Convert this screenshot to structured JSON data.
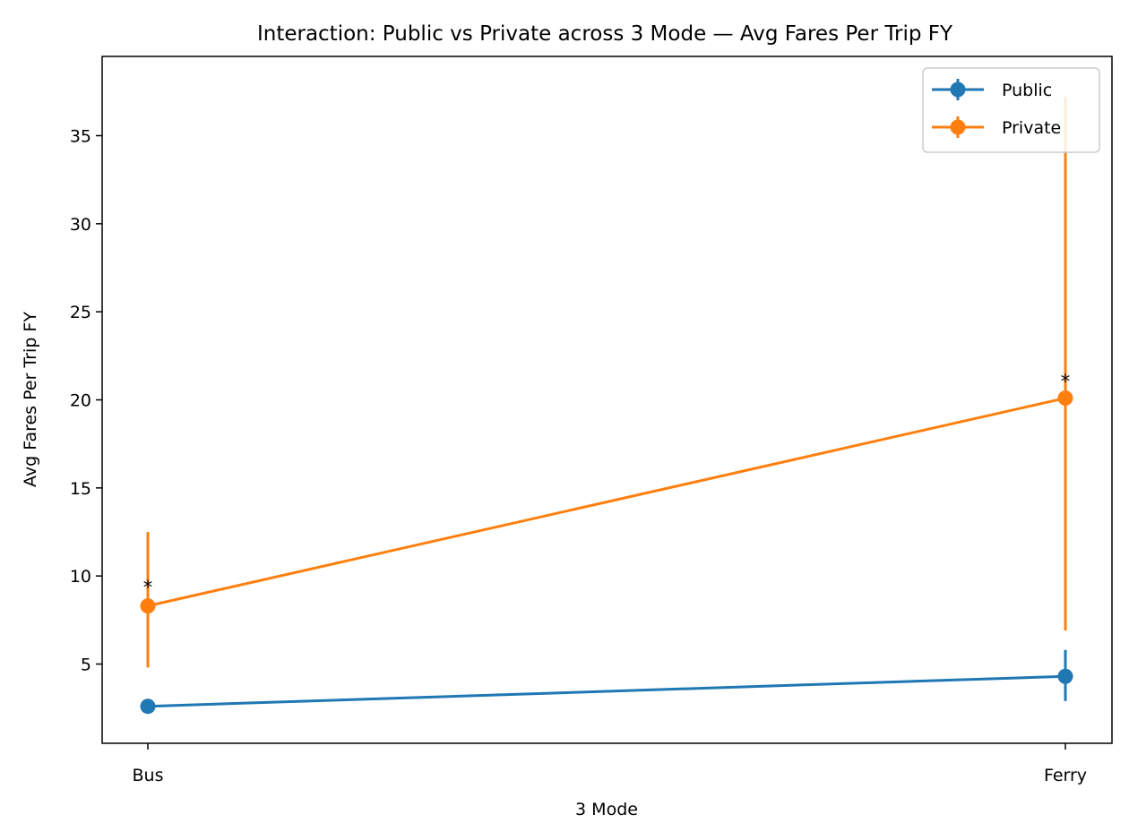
{
  "chart_data": {
    "type": "line",
    "title": "Interaction: Public vs Private across 3 Mode — Avg Fares Per Trip FY",
    "xlabel": "3 Mode",
    "ylabel": "Avg Fares Per Trip FY",
    "categories": [
      "Bus",
      "Ferry"
    ],
    "ylim": [
      0.5,
      39.5
    ],
    "yticks": [
      5,
      10,
      15,
      20,
      25,
      30,
      35
    ],
    "grid": false,
    "legend": "top-right",
    "series": [
      {
        "name": "Public",
        "color": "#1f77b4",
        "values": [
          2.6,
          4.3
        ],
        "err_low": [
          2.6,
          2.9
        ],
        "err_high": [
          2.6,
          5.8
        ]
      },
      {
        "name": "Private",
        "color": "#ff7f0e",
        "values": [
          8.3,
          20.1
        ],
        "err_low": [
          4.8,
          6.9
        ],
        "err_high": [
          12.5,
          37.2
        ]
      }
    ],
    "annotations": [
      {
        "text": "*",
        "category": "Bus",
        "y": 9.7
      },
      {
        "text": "*",
        "category": "Ferry",
        "y": 21.4
      }
    ]
  }
}
